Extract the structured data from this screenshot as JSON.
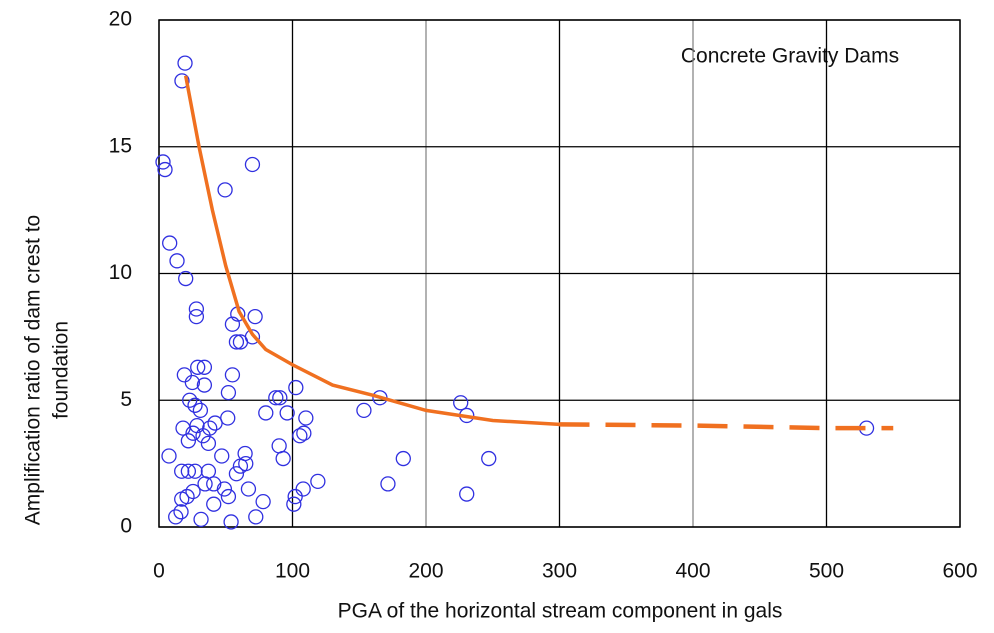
{
  "chart_data": {
    "type": "scatter",
    "title": "Concrete Gravity Dams",
    "xlabel": "PGA of the horizontal stream component in gals",
    "ylabel": [
      "Amplification ratio of dam crest to",
      "foundation"
    ],
    "xlim": [
      0,
      600
    ],
    "xticks": [
      0,
      100,
      200,
      300,
      400,
      500,
      600
    ],
    "ylim": [
      0,
      20
    ],
    "yticks": [
      0,
      5,
      10,
      15,
      20
    ],
    "grid": true,
    "series": [
      {
        "type": "scatter",
        "color": "#3030e0",
        "x": [
          19.5,
          17.2,
          3,
          4.5,
          70,
          49.5,
          8,
          13.5,
          20,
          28,
          28,
          72,
          59,
          55,
          70,
          61,
          58,
          19,
          29,
          34,
          55,
          25,
          34,
          102.5,
          52,
          87.5,
          90.5,
          165.5,
          23,
          27,
          31,
          226,
          153.5,
          230.5,
          80,
          96,
          110,
          51.5,
          42,
          28.5,
          18,
          38,
          25.5,
          33,
          105.5,
          108.5,
          530,
          22,
          37,
          90,
          64.5,
          47,
          7.5,
          93,
          183,
          247,
          61,
          65,
          22,
          17,
          27,
          37,
          58,
          34.5,
          41,
          119,
          171.5,
          108,
          67,
          49,
          25.5,
          52,
          102,
          78,
          101,
          17,
          21,
          230.5,
          41,
          16.5,
          12.5,
          31.5,
          54,
          72.5
        ],
        "values": [
          18.3,
          17.6,
          14.4,
          14.1,
          14.3,
          13.3,
          11.2,
          10.5,
          9.8,
          8.6,
          8.3,
          8.3,
          8.4,
          8.0,
          7.5,
          7.3,
          7.3,
          6.0,
          6.3,
          6.3,
          6.0,
          5.7,
          5.6,
          5.5,
          5.3,
          5.1,
          5.1,
          5.1,
          5.0,
          4.8,
          4.6,
          4.9,
          4.6,
          4.4,
          4.5,
          4.5,
          4.3,
          4.3,
          4.1,
          4.0,
          3.9,
          3.9,
          3.7,
          3.6,
          3.6,
          3.7,
          3.9,
          3.4,
          3.3,
          3.2,
          2.9,
          2.8,
          2.8,
          2.7,
          2.7,
          2.7,
          2.4,
          2.5,
          2.2,
          2.2,
          2.2,
          2.2,
          2.1,
          1.7,
          1.7,
          1.8,
          1.7,
          1.5,
          1.5,
          1.5,
          1.4,
          1.2,
          1.2,
          1.0,
          0.9,
          1.1,
          1.2,
          1.3,
          0.9,
          0.6,
          0.4,
          0.3,
          0.2,
          0.4
        ]
      },
      {
        "type": "line",
        "color": "#f07020",
        "x": [
          20,
          30,
          40,
          50,
          60,
          70,
          80,
          100,
          130,
          160,
          200,
          250,
          300
        ],
        "values": [
          17.8,
          15,
          12.5,
          10.3,
          8.5,
          7.6,
          7,
          6.4,
          5.6,
          5.2,
          4.6,
          4.2,
          4.05
        ]
      },
      {
        "type": "line",
        "color": "#f07020",
        "dashed": true,
        "x": [
          300,
          400,
          500,
          550
        ],
        "values": [
          4.05,
          4.0,
          3.9,
          3.9
        ]
      }
    ]
  }
}
